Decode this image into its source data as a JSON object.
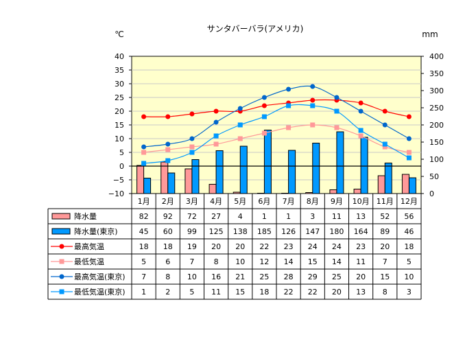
{
  "chart_data": {
    "type": "bar+line",
    "title": "サンタバーバラ(アメリカ)",
    "ylabel_left": "℃",
    "ylabel_right": "mm",
    "ylim_left": [
      -10,
      40
    ],
    "ylim_right": [
      0,
      400
    ],
    "left_ticks": [
      "40",
      "35",
      "30",
      "25",
      "20",
      "15",
      "10",
      "5",
      "0",
      "−5",
      "−10"
    ],
    "right_ticks": [
      "400",
      "350",
      "300",
      "250",
      "200",
      "150",
      "100",
      "50",
      "0"
    ],
    "categories": [
      "1月",
      "2月",
      "3月",
      "4月",
      "5月",
      "6月",
      "7月",
      "8月",
      "9月",
      "10月",
      "11月",
      "12月"
    ],
    "grid": true,
    "legend": "table-below",
    "series": [
      {
        "name": "降水量",
        "kind": "bar",
        "axis": "right",
        "color": "#ff9999",
        "values": [
          82,
          92,
          72,
          27,
          4,
          1,
          1,
          3,
          11,
          13,
          52,
          56
        ]
      },
      {
        "name": "降水量(東京)",
        "kind": "bar",
        "axis": "right",
        "color": "#0099ff",
        "values": [
          45,
          60,
          99,
          125,
          138,
          185,
          126,
          147,
          180,
          164,
          89,
          46
        ]
      },
      {
        "name": "最高気温",
        "kind": "line",
        "axis": "left",
        "color": "#ff0000",
        "marker": "circle",
        "values": [
          18,
          18,
          19,
          20,
          20,
          22,
          23,
          24,
          24,
          23,
          20,
          18
        ]
      },
      {
        "name": "最低気温",
        "kind": "line",
        "axis": "left",
        "color": "#ff9999",
        "marker": "square",
        "values": [
          5,
          6,
          7,
          8,
          10,
          12,
          14,
          15,
          14,
          11,
          7,
          5
        ]
      },
      {
        "name": "最高気温(東京)",
        "kind": "line",
        "axis": "left",
        "color": "#0066cc",
        "marker": "circle",
        "values": [
          7,
          8,
          10,
          16,
          21,
          25,
          28,
          29,
          25,
          20,
          15,
          10
        ]
      },
      {
        "name": "最低気温(東京)",
        "kind": "line",
        "axis": "left",
        "color": "#0099ff",
        "marker": "square",
        "values": [
          1,
          2,
          5,
          11,
          15,
          18,
          22,
          22,
          20,
          13,
          8,
          3
        ]
      }
    ]
  }
}
